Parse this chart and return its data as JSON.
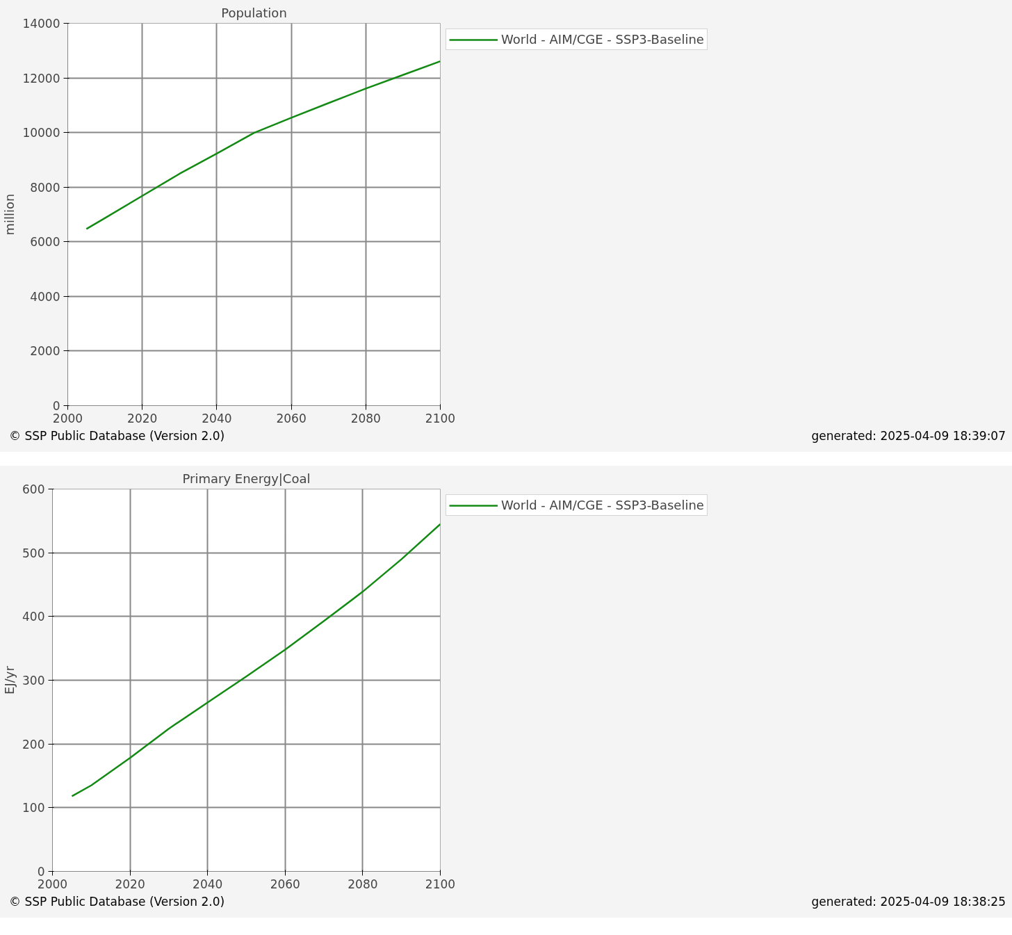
{
  "chart_data": [
    {
      "type": "line",
      "title": "Population",
      "ylabel": "million",
      "x": [
        2005,
        2010,
        2020,
        2030,
        2040,
        2050,
        2060,
        2070,
        2080,
        2090,
        2100
      ],
      "series": [
        {
          "name": "World - AIM/CGE - SSP3-Baseline",
          "color": "#138a13",
          "values": [
            6470,
            6870,
            7680,
            8490,
            9230,
            9990,
            10540,
            11080,
            11610,
            12110,
            12610
          ]
        }
      ],
      "xlim": [
        2000,
        2100
      ],
      "xticks": [
        2000,
        2020,
        2040,
        2060,
        2080,
        2100
      ],
      "ylim": [
        0,
        14000
      ],
      "yticks": [
        0,
        2000,
        4000,
        6000,
        8000,
        10000,
        12000,
        14000
      ],
      "grid": true,
      "legend": "top right",
      "annotations": [
        "© SSP Public Database (Version 2.0)",
        "generated: 2025-04-09 18:39:07"
      ]
    },
    {
      "type": "line",
      "title": "Primary Energy|Coal",
      "ylabel": "EJ/yr",
      "x": [
        2005,
        2010,
        2020,
        2030,
        2040,
        2050,
        2060,
        2070,
        2080,
        2090,
        2100
      ],
      "series": [
        {
          "name": "World - AIM/CGE - SSP3-Baseline",
          "color": "#138a13",
          "values": [
            118,
            135,
            178,
            224,
            265,
            306,
            348,
            393,
            439,
            490,
            545
          ]
        }
      ],
      "xlim": [
        2000,
        2100
      ],
      "xticks": [
        2000,
        2020,
        2040,
        2060,
        2080,
        2100
      ],
      "ylim": [
        0,
        600
      ],
      "yticks": [
        0,
        100,
        200,
        300,
        400,
        500,
        600
      ],
      "grid": true,
      "legend": "top right",
      "annotations": [
        "© SSP Public Database (Version 2.0)",
        "generated: 2025-04-09 18:38:25"
      ]
    }
  ]
}
